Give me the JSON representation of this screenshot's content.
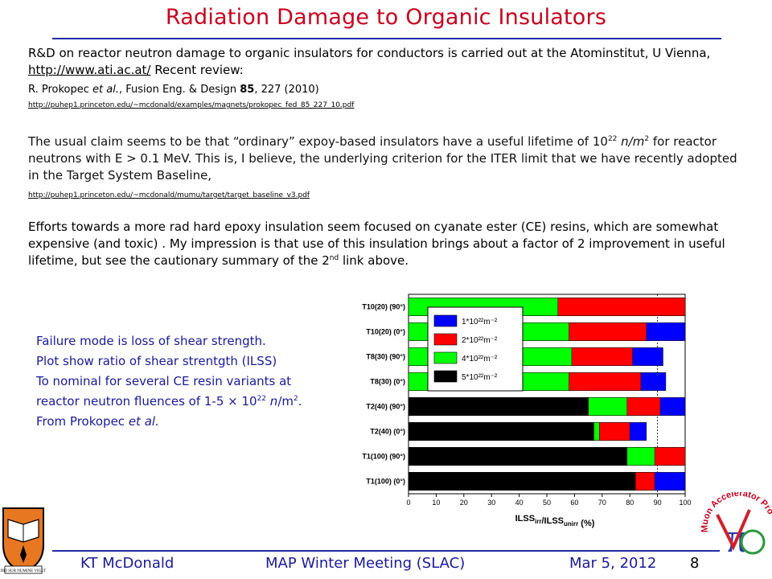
{
  "title": "Radiation Damage to Organic Insulators",
  "p1": {
    "text": "R&D on reactor neutron damage to organic insulators for conductors is carried out at the Atominstitut, U Vienna, ",
    "url": "http://www.ati.ac.at/",
    "tail": "   Recent review:"
  },
  "ref": {
    "authors": "R. Prokopec ",
    "etal": "et al.",
    "journal": ",  Fusion Eng. & Design ",
    "volume": "85",
    "pages": ", 227 (2010)"
  },
  "link1": "http://puhep1.princeton.edu/~mcdonald/examples/magnets/prokopec_fed_85_227_10.pdf",
  "p2": {
    "a": "The usual claim seems to be that “ordinary” expoy-based insulators have a useful lifetime of 10",
    "exp": "22",
    "b": " n/m",
    "exp2": "2",
    "c": " for reactor neutrons with E > 0.1 MeV.   This is, I believe, the underlying criterion for the ITER limit that we have recently adopted in the Target System Baseline,"
  },
  "link2": "http://puhep1.princeton.edu/~mcdonald/mumu/target/target_baseline_v3.pdf",
  "p3": {
    "a": "Efforts towards a more rad hard epoxy insulation seem focused on cyanate ester (CE) resins, which are somewhat expensive (and toxic) . My impression is that use of this insulation brings about a factor of 2 improvement in useful lifetime, but see the cautionary summary of the 2",
    "sup": "nd",
    "b": "  link above."
  },
  "failure": {
    "l1": "Failure mode is loss of shear strength.",
    "l2": "Plot show ratio of shear strentgth (ILSS)",
    "l3": "To nominal for several CE resin variants at",
    "l4a": "reactor neutron fluences of 1-5 × 10",
    "l4exp": "22",
    "l4b": " n",
    "l4c": "/m",
    "l4exp2": "2",
    "l4d": ".",
    "l5a": "From Prokopec ",
    "l5b": "et al."
  },
  "chart_data": {
    "type": "bar",
    "orientation": "horizontal",
    "xlabel": "ILSS",
    "xlabel_sub1": "irr",
    "xlabel_mid": "/ILSS",
    "xlabel_sub2": "unirr",
    "xlabel_unit": " (%)",
    "xlim": [
      0,
      100
    ],
    "xticks": [
      0,
      10,
      20,
      30,
      40,
      50,
      60,
      70,
      80,
      90,
      100
    ],
    "categories": [
      "T10(20) (90°)",
      "T10(20) (0°)",
      "T8(30) (90°)",
      "T8(30) (0°)",
      "T2(40) (90°)",
      "T2(40) (0°)",
      "T1(100) (90°)",
      "T1(100) (0°)"
    ],
    "series": [
      {
        "name": "1*10²²m⁻²",
        "color": "#0000ff",
        "values": [
          100,
          100,
          92,
          93,
          100,
          86,
          100,
          100
        ]
      },
      {
        "name": "2*10²²m⁻²",
        "color": "#ff0000",
        "values": [
          100,
          86,
          81,
          84,
          91,
          80,
          100,
          89
        ]
      },
      {
        "name": "4*10²²m⁻²",
        "color": "#00ff00",
        "values": [
          54,
          58,
          59,
          58,
          79,
          69,
          89,
          82
        ]
      },
      {
        "name": "5*10²²m⁻²",
        "color": "#000000",
        "values": [
          null,
          null,
          null,
          null,
          65,
          67,
          79,
          82
        ]
      }
    ],
    "reference_line": 90,
    "legend_position": "top-center"
  },
  "footer": {
    "author": "KT McDonald",
    "meeting": "MAP Winter Meeting  (SLAC)",
    "date": "Mar 5, 2012",
    "page": "8"
  },
  "logos": {
    "muon": "Muon Accelerator Program",
    "pi": "π",
    "seal": "DEI SUB NUMINE VIGET"
  },
  "colors": {
    "title": "#c8001e",
    "rule": "#1f2aa8",
    "accent_text": "#1a1a9a"
  }
}
